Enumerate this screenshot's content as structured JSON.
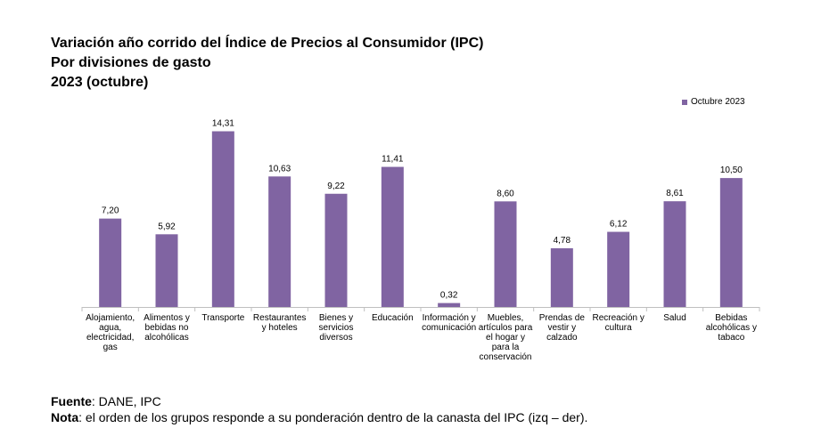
{
  "title_lines": [
    "Variación año corrido del Índice de Precios al Consumidor (IPC)",
    "Por divisiones de gasto",
    "2023 (octubre)"
  ],
  "footer": {
    "source_label": "Fuente",
    "source_text": ": DANE, IPC",
    "note_label": "Nota",
    "note_text": ": el orden de los grupos responde a su ponderación dentro de la canasta del IPC (izq – der)."
  },
  "colors": {
    "bar": "#8064a2",
    "axis": "#bfbfbf",
    "text": "#000000"
  },
  "chart_data": {
    "type": "bar",
    "title": "Variación año corrido del Índice de Precios al Consumidor (IPC)",
    "subtitle": "Por divisiones de gasto",
    "legend_position": "top-right",
    "grid": false,
    "ylim": [
      0,
      15
    ],
    "categories": [
      [
        "Alojamiento,",
        "agua,",
        "electricidad,",
        "gas"
      ],
      [
        "Alimentos y",
        "bebidas no",
        "alcohólicas"
      ],
      [
        "Transporte"
      ],
      [
        "Restaurantes",
        "y hoteles"
      ],
      [
        "Bienes y",
        "servicios",
        "diversos"
      ],
      [
        "Educación"
      ],
      [
        "Información y",
        "comunicación"
      ],
      [
        "Muebles,",
        "artículos para",
        "el hogar y",
        "para la",
        "conservación"
      ],
      [
        "Prendas de",
        "vestir y",
        "calzado"
      ],
      [
        "Recreación y",
        "cultura"
      ],
      [
        "Salud"
      ],
      [
        "Bebidas",
        "alcohólicas y",
        "tabaco"
      ]
    ],
    "series": [
      {
        "name": "Octubre 2023",
        "values": [
          7.2,
          5.92,
          14.31,
          10.63,
          9.22,
          11.41,
          0.32,
          8.6,
          4.78,
          6.12,
          8.61,
          10.5
        ],
        "labels": [
          "7,20",
          "5,92",
          "14,31",
          "10,63",
          "9,22",
          "11,41",
          "0,32",
          "8,60",
          "4,78",
          "6,12",
          "8,61",
          "10,50"
        ]
      }
    ]
  }
}
